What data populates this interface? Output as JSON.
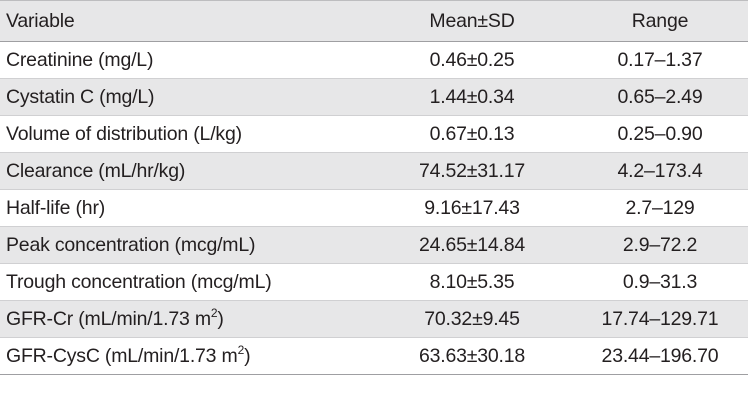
{
  "header": {
    "variable": "Variable",
    "mean_sd": "Mean±SD",
    "range": "Range"
  },
  "rows": [
    {
      "variable": "Creatinine (mg/L)",
      "sup": "",
      "suffix": "",
      "mean_sd": "0.46±0.25",
      "range": "0.17–1.37"
    },
    {
      "variable": "Cystatin C (mg/L)",
      "sup": "",
      "suffix": "",
      "mean_sd": "1.44±0.34",
      "range": "0.65–2.49"
    },
    {
      "variable": "Volume of distribution (L/kg)",
      "sup": "",
      "suffix": "",
      "mean_sd": "0.67±0.13",
      "range": "0.25–0.90"
    },
    {
      "variable": "Clearance (mL/hr/kg)",
      "sup": "",
      "suffix": "",
      "mean_sd": "74.52±31.17",
      "range": "4.2–173.4"
    },
    {
      "variable": "Half-life (hr)",
      "sup": "",
      "suffix": "",
      "mean_sd": "9.16±17.43",
      "range": "2.7–129"
    },
    {
      "variable": "Peak concentration (mcg/mL)",
      "sup": "",
      "suffix": "",
      "mean_sd": "24.65±14.84",
      "range": "2.9–72.2"
    },
    {
      "variable": "Trough concentration (mcg/mL)",
      "sup": "",
      "suffix": "",
      "mean_sd": "8.10±5.35",
      "range": "0.9–31.3"
    },
    {
      "variable": "GFR-Cr (mL/min/1.73 m",
      "sup": "2",
      "suffix": ")",
      "mean_sd": "70.32±9.45",
      "range": "17.74–129.71"
    },
    {
      "variable": "GFR-CysC (mL/min/1.73 m",
      "sup": "2",
      "suffix": ")",
      "mean_sd": "63.63±30.18",
      "range": "23.44–196.70"
    }
  ]
}
